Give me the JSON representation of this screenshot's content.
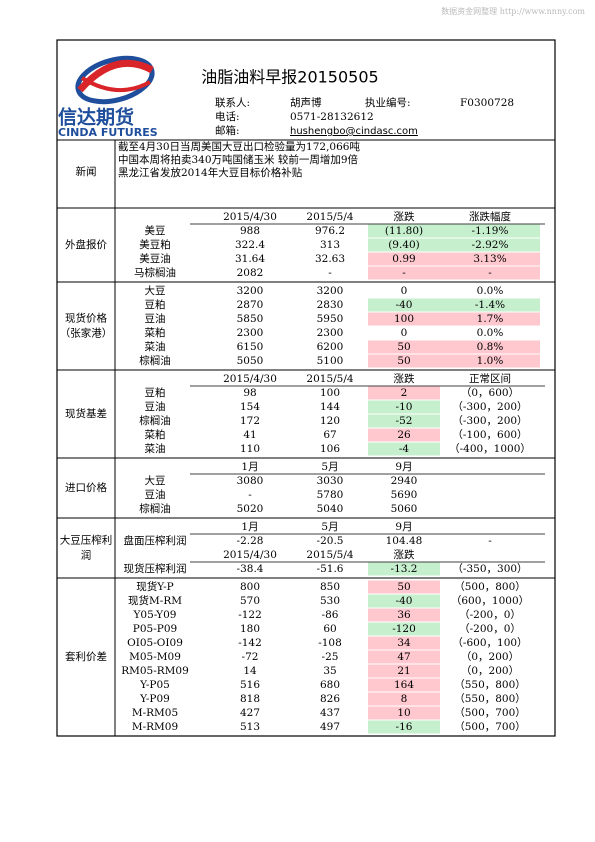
{
  "watermark": "数据资金网整理 http://www.nnny.com",
  "header": {
    "logo_cn": "信达期货",
    "logo_en": "CINDA FUTURES",
    "title": "油脂油料早报20150505",
    "contact_label": "联系人:",
    "contact": "胡声博",
    "license_label": "执业编号:",
    "license": "F0300728",
    "phone_label": "电话:",
    "phone": "0571-28132612",
    "email_label": "邮箱:",
    "email": "hushengbo@cindasc.com"
  },
  "news": {
    "label": "新闻",
    "lines": [
      "截至4月30日当周美国大豆出口检验量为172,066吨",
      "中国本周将拍卖340万吨国储玉米 较前一周增加9倍",
      "黑龙江省发放2014年大豆目标价格补贴"
    ]
  },
  "sections": [
    {
      "label": [
        "外盘报价"
      ],
      "rows": [
        {
          "cells": [
            "2015/4/30",
            "2015/5/4",
            "涨跌",
            "涨跌幅度"
          ]
        },
        {
          "name": "美豆",
          "cells": [
            "988",
            "976.2",
            "(11.80)",
            "-1.19%"
          ],
          "fill": [
            null,
            null,
            "#c6efce",
            "#c6efce"
          ]
        },
        {
          "name": "美豆粕",
          "cells": [
            "322.4",
            "313",
            "(9.40)",
            "-2.92%"
          ],
          "fill": [
            null,
            null,
            "#c6efce",
            "#c6efce"
          ]
        },
        {
          "name": "美豆油",
          "cells": [
            "31.64",
            "32.63",
            "0.99",
            "3.13%"
          ],
          "fill": [
            null,
            null,
            "#ffc7ce",
            "#ffc7ce"
          ]
        },
        {
          "name": "马棕榈油",
          "cells": [
            "2082",
            "-",
            "-",
            "-"
          ],
          "fill": [
            null,
            null,
            "#ffc7ce",
            "#ffc7ce"
          ]
        }
      ]
    },
    {
      "label": [
        "现货价格",
        "（张家港）"
      ],
      "rows": [
        {
          "name": "大豆",
          "cells": [
            "3200",
            "3200",
            "0",
            "0.0%"
          ]
        },
        {
          "name": "豆粕",
          "cells": [
            "2870",
            "2830",
            "-40",
            "-1.4%"
          ],
          "fill": [
            null,
            null,
            "#c6efce",
            "#c6efce"
          ]
        },
        {
          "name": "豆油",
          "cells": [
            "5850",
            "5950",
            "100",
            "1.7%"
          ],
          "fill": [
            null,
            null,
            "#ffc7ce",
            "#ffc7ce"
          ]
        },
        {
          "name": "菜粕",
          "cells": [
            "2300",
            "2300",
            "0",
            "0.0%"
          ]
        },
        {
          "name": "菜油",
          "cells": [
            "6150",
            "6200",
            "50",
            "0.8%"
          ],
          "fill": [
            null,
            null,
            "#ffc7ce",
            "#ffc7ce"
          ]
        },
        {
          "name": "棕榈油",
          "cells": [
            "5050",
            "5100",
            "50",
            "1.0%"
          ],
          "fill": [
            null,
            null,
            "#ffc7ce",
            "#ffc7ce"
          ]
        }
      ]
    },
    {
      "label": [
        "现货基差"
      ],
      "rows": [
        {
          "cells": [
            "2015/4/30",
            "2015/5/4",
            "涨跌",
            "正常区间"
          ]
        },
        {
          "name": "豆粕",
          "cells": [
            "98",
            "100",
            "2",
            "（0，600）"
          ],
          "fill": [
            null,
            null,
            "#ffc7ce",
            null
          ]
        },
        {
          "name": "豆油",
          "cells": [
            "154",
            "144",
            "-10",
            "（-300，200）"
          ],
          "fill": [
            null,
            null,
            "#c6efce",
            null
          ]
        },
        {
          "name": "棕榈油",
          "cells": [
            "172",
            "120",
            "-52",
            "（-300，200）"
          ],
          "fill": [
            null,
            null,
            "#c6efce",
            null
          ]
        },
        {
          "name": "菜粕",
          "cells": [
            "41",
            "67",
            "26",
            "（-100，600）"
          ],
          "fill": [
            null,
            null,
            "#ffc7ce",
            null
          ]
        },
        {
          "name": "菜油",
          "cells": [
            "110",
            "106",
            "-4",
            "（-400，1000）"
          ],
          "fill": [
            null,
            null,
            "#c6efce",
            null
          ]
        }
      ]
    },
    {
      "label": [
        "进口价格"
      ],
      "rows": [
        {
          "cells": [
            "1月",
            "5月",
            "9月"
          ]
        },
        {
          "name": "大豆",
          "cells": [
            "3080",
            "3030",
            "2940"
          ]
        },
        {
          "name": "豆油",
          "cells": [
            "-",
            "5780",
            "5690"
          ]
        },
        {
          "name": "棕榈油",
          "cells": [
            "5020",
            "5040",
            "5060"
          ]
        }
      ]
    },
    {
      "label": [
        "大豆压榨利",
        "润"
      ],
      "rows": [
        {
          "cells": [
            "1月",
            "5月",
            "9月"
          ]
        },
        {
          "name": "盘面压榨利润",
          "cells": [
            "-2.28",
            "-20.5",
            "104.48",
            "-"
          ]
        },
        {
          "cells": [
            "2015/4/30",
            "2015/5/4",
            "涨跌"
          ]
        },
        {
          "name": "现货压榨利润",
          "cells": [
            "-38.4",
            "-51.6",
            "-13.2",
            "（-350，300）"
          ],
          "fill": [
            null,
            null,
            "#c6efce",
            null
          ]
        }
      ]
    },
    {
      "label": [
        "套利价差"
      ],
      "rows": [
        {
          "name": "现货Y-P",
          "cells": [
            "800",
            "850",
            "50",
            "（500，800）"
          ],
          "fill": [
            null,
            null,
            "#ffc7ce",
            null
          ]
        },
        {
          "name": "现货M-RM",
          "cells": [
            "570",
            "530",
            "-40",
            "（600，1000）"
          ],
          "fill": [
            null,
            null,
            "#c6efce",
            null
          ]
        },
        {
          "name": "Y05-Y09",
          "cells": [
            "-122",
            "-86",
            "36",
            "（-200，0）"
          ],
          "fill": [
            null,
            null,
            "#ffc7ce",
            null
          ]
        },
        {
          "name": "P05-P09",
          "cells": [
            "180",
            "60",
            "-120",
            "（-200，0）"
          ],
          "fill": [
            null,
            null,
            "#c6efce",
            null
          ]
        },
        {
          "name": "OI05-OI09",
          "cells": [
            "-142",
            "-108",
            "34",
            "（-600，100）"
          ],
          "fill": [
            null,
            null,
            "#ffc7ce",
            null
          ]
        },
        {
          "name": "M05-M09",
          "cells": [
            "-72",
            "-25",
            "47",
            "（0，200）"
          ],
          "fill": [
            null,
            null,
            "#ffc7ce",
            null
          ]
        },
        {
          "name": "RM05-RM09",
          "cells": [
            "14",
            "35",
            "21",
            "（0，200）"
          ],
          "fill": [
            null,
            null,
            "#ffc7ce",
            null
          ]
        },
        {
          "name": "Y-P05",
          "cells": [
            "516",
            "680",
            "164",
            "（550，800）"
          ],
          "fill": [
            null,
            null,
            "#ffc7ce",
            null
          ]
        },
        {
          "name": "Y-P09",
          "cells": [
            "818",
            "826",
            "8",
            "（550，800）"
          ],
          "fill": [
            null,
            null,
            "#ffc7ce",
            null
          ]
        },
        {
          "name": "M-RM05",
          "cells": [
            "427",
            "437",
            "10",
            "（500，700）"
          ],
          "fill": [
            null,
            null,
            "#ffc7ce",
            null
          ]
        },
        {
          "name": "M-RM09",
          "cells": [
            "513",
            "497",
            "-16",
            "（500，700）"
          ],
          "fill": [
            null,
            null,
            "#c6efce",
            null
          ]
        }
      ]
    }
  ]
}
